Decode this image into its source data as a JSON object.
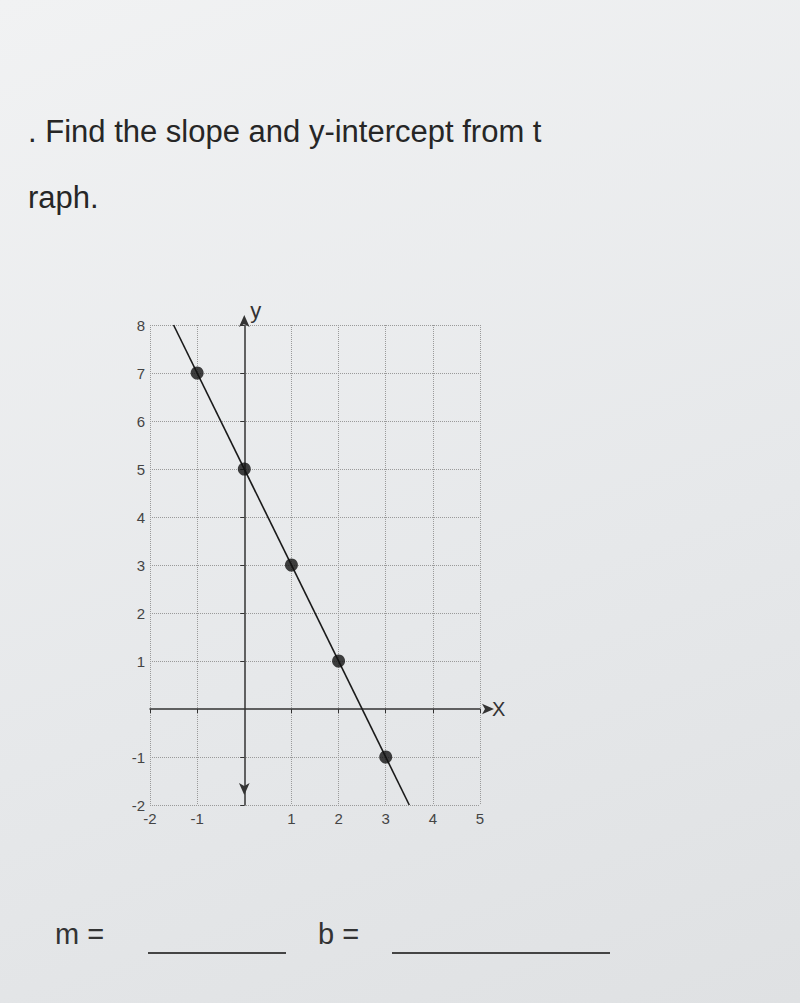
{
  "question": [
    ". Find the slope and y-intercept from t",
    "raph."
  ],
  "answers": [
    "m =",
    "b ="
  ],
  "chart_data": {
    "type": "line",
    "x_label": "X",
    "y_label": "y",
    "xlim": [
      -2,
      5
    ],
    "ylim": [
      -2,
      8
    ],
    "xticks": [
      -2,
      -1,
      1,
      2,
      3,
      4,
      5
    ],
    "yticks": [
      -2,
      -1,
      1,
      2,
      3,
      4,
      5,
      6,
      7,
      8
    ],
    "grid": true,
    "series": [
      {
        "type": "line",
        "color": "#1a1a1a",
        "line_style": "solid",
        "x": [
          -1.5,
          3.5
        ],
        "values": [
          8,
          -2
        ]
      },
      {
        "type": "scatter",
        "color": "#111111",
        "marker": "circle",
        "x": [
          -1,
          0,
          1,
          2,
          3
        ],
        "values": [
          7,
          5,
          3,
          1,
          -1
        ]
      }
    ]
  }
}
